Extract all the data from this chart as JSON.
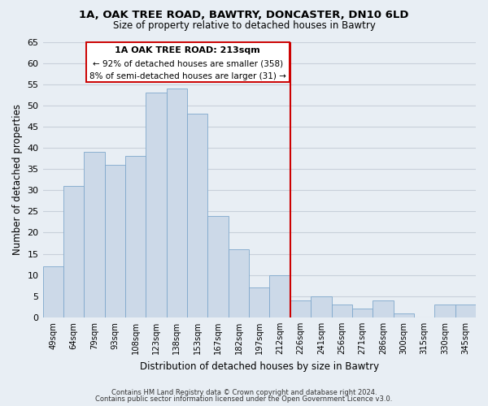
{
  "title1": "1A, OAK TREE ROAD, BAWTRY, DONCASTER, DN10 6LD",
  "title2": "Size of property relative to detached houses in Bawtry",
  "xlabel": "Distribution of detached houses by size in Bawtry",
  "ylabel": "Number of detached properties",
  "bar_labels": [
    "49sqm",
    "64sqm",
    "79sqm",
    "93sqm",
    "108sqm",
    "123sqm",
    "138sqm",
    "153sqm",
    "167sqm",
    "182sqm",
    "197sqm",
    "212sqm",
    "226sqm",
    "241sqm",
    "256sqm",
    "271sqm",
    "286sqm",
    "300sqm",
    "315sqm",
    "330sqm",
    "345sqm"
  ],
  "bar_values": [
    12,
    31,
    39,
    36,
    38,
    53,
    54,
    48,
    24,
    16,
    7,
    10,
    4,
    5,
    3,
    2,
    4,
    1,
    0,
    3,
    3
  ],
  "bar_color": "#ccd9e8",
  "bar_edge_color": "#7fa8cc",
  "marker_label": "1A OAK TREE ROAD: 213sqm",
  "annotation_line1": "← 92% of detached houses are smaller (358)",
  "annotation_line2": "8% of semi-detached houses are larger (31) →",
  "vline_color": "#cc0000",
  "vline_index": 11.5,
  "ylim": [
    0,
    65
  ],
  "yticks": [
    0,
    5,
    10,
    15,
    20,
    25,
    30,
    35,
    40,
    45,
    50,
    55,
    60,
    65
  ],
  "footer1": "Contains HM Land Registry data © Crown copyright and database right 2024.",
  "footer2": "Contains public sector information licensed under the Open Government Licence v3.0.",
  "bg_color": "#e8eef4",
  "grid_color": "#c8d0da"
}
